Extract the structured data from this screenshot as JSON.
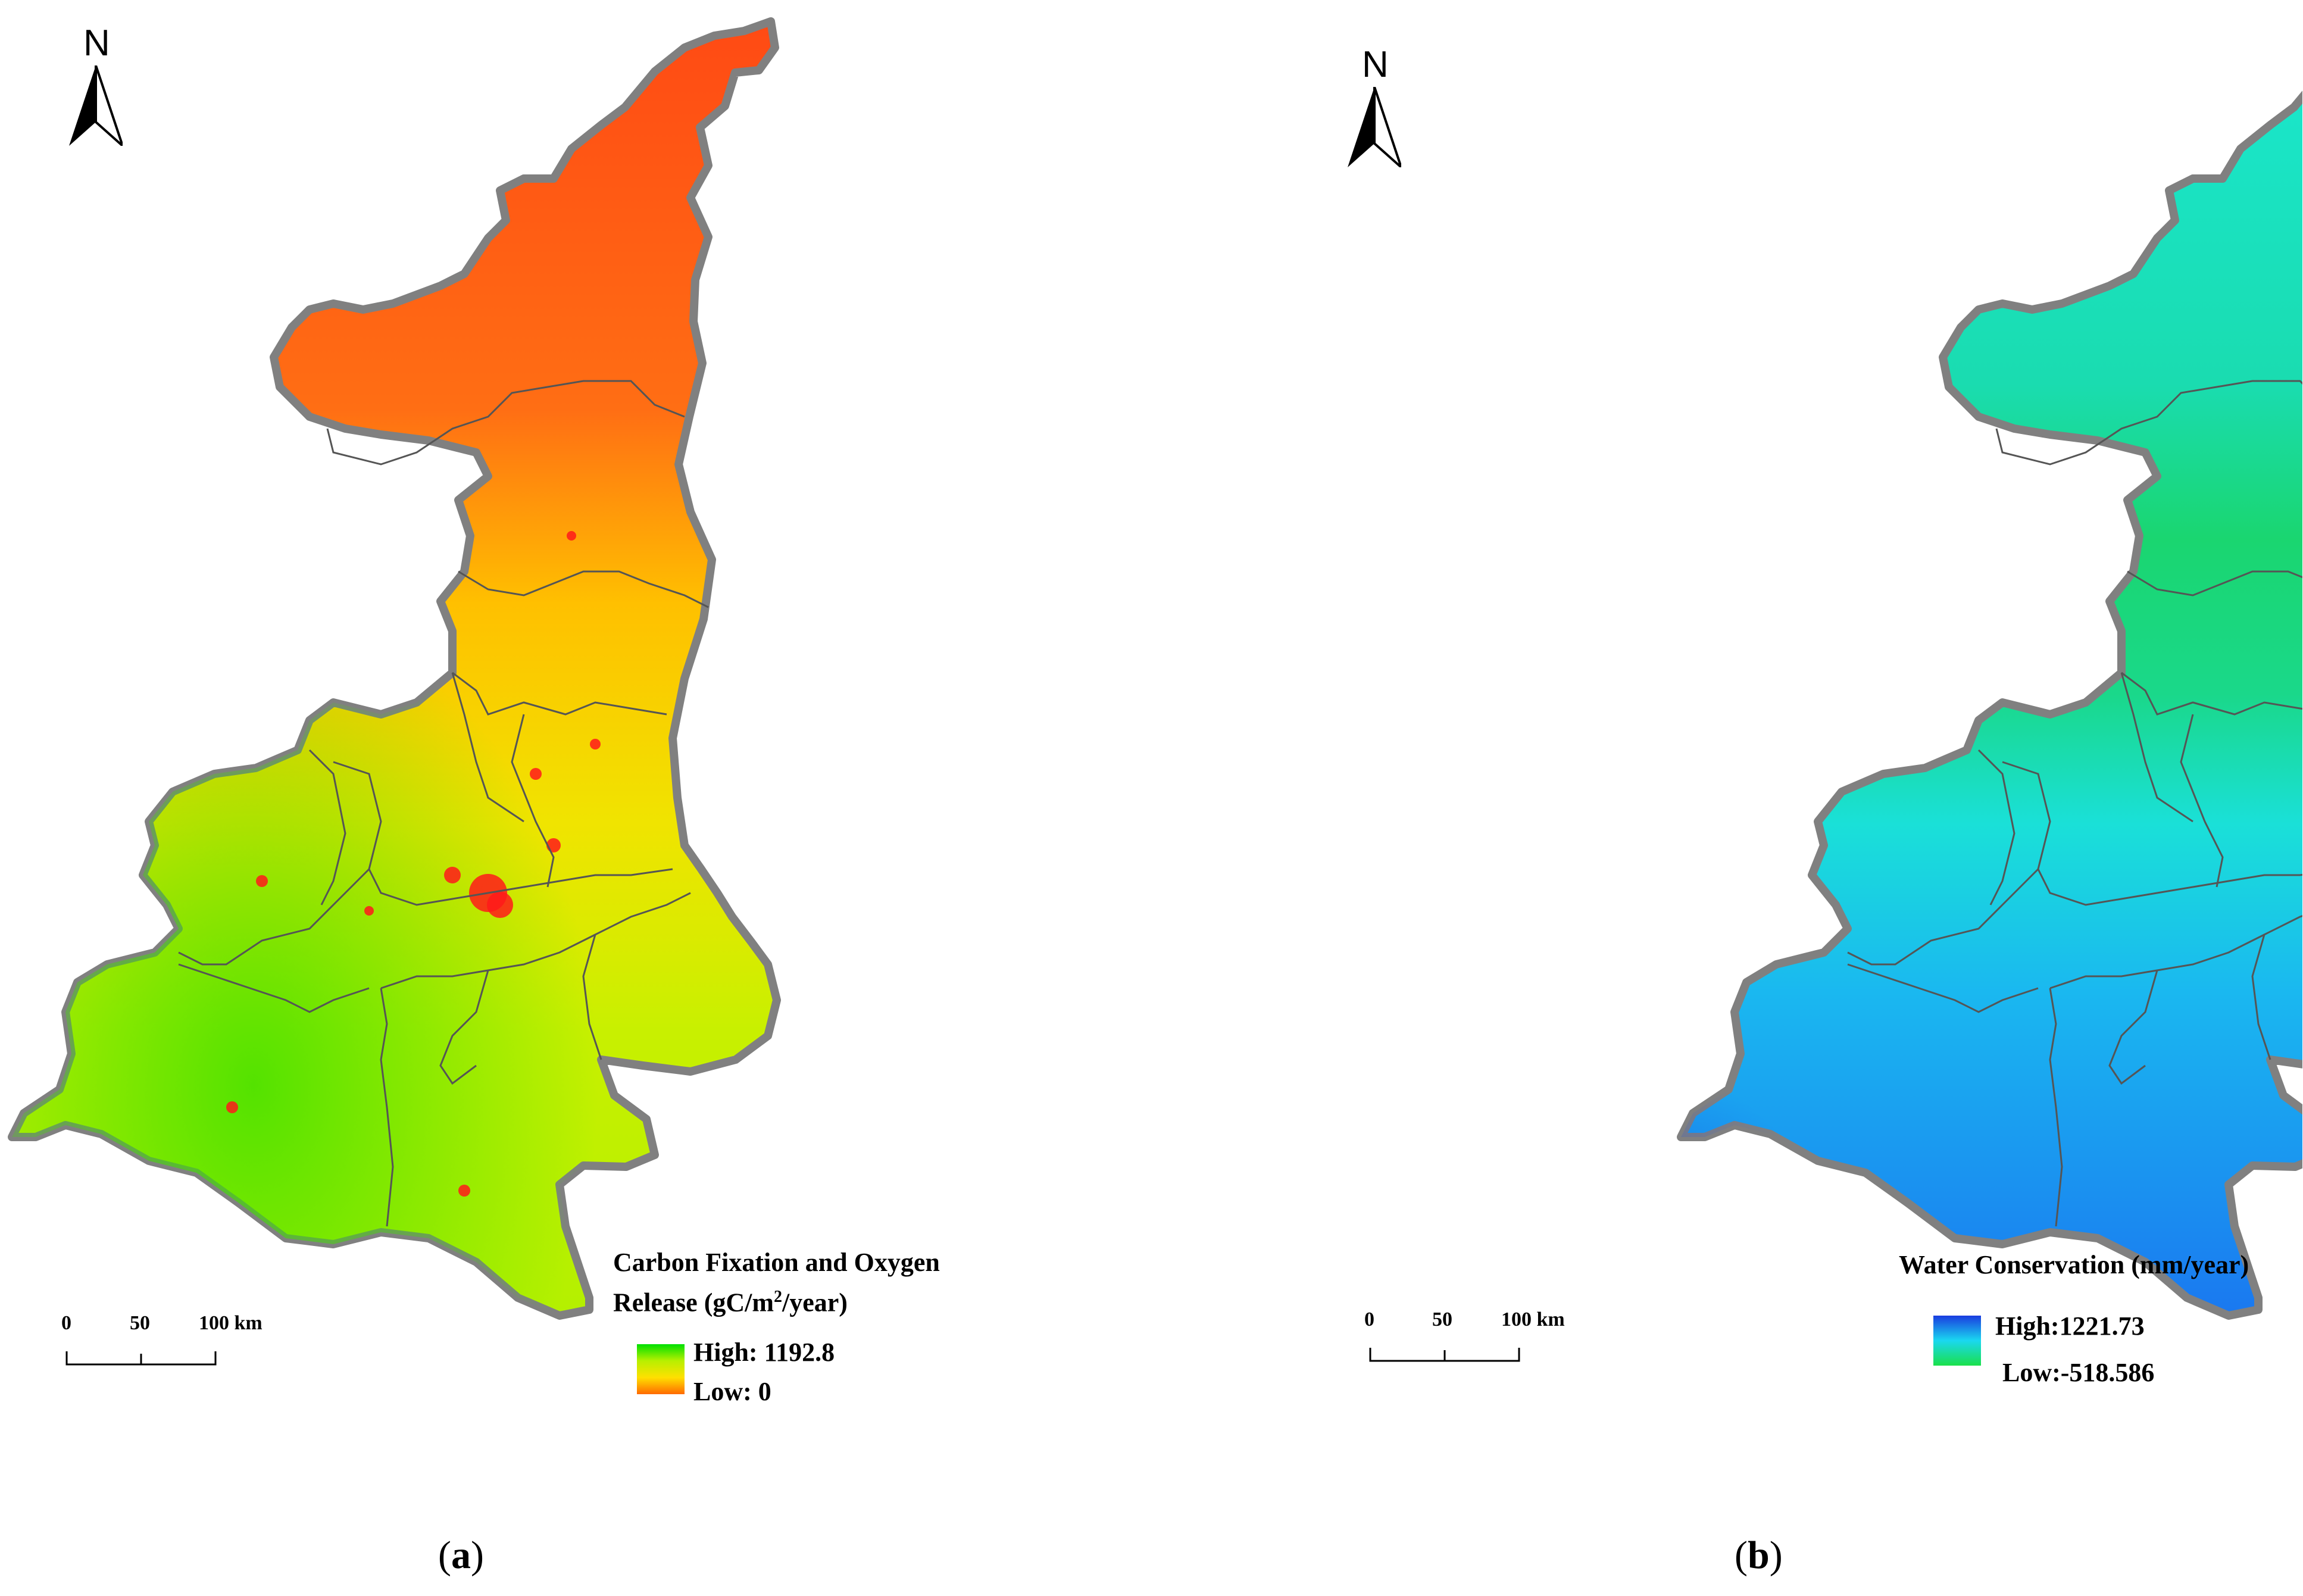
{
  "panels": [
    {
      "id": "a",
      "caption_open": "(",
      "caption_letter": "a",
      "caption_close": ")",
      "north_label": "N",
      "legend": {
        "title_line1": "Carbon Fixation and Oxygen",
        "title_line2_pre": "Release (gC/m",
        "title_line2_sup": "2",
        "title_line2_post": "/year)",
        "high_label": "High: 1192.8",
        "low_label": "Low: 0",
        "gradient_colors": [
          "#00e000",
          "#b8f000",
          "#ffe000",
          "#ff6a00"
        ]
      },
      "scalebar": {
        "labels": [
          "0",
          "50",
          "100 km"
        ]
      },
      "map_colors": {
        "north": "#ff5a14",
        "middle": "#ffb400",
        "south": "#c8f000",
        "southwest": "#5ee000",
        "outline": "#808080",
        "hotspots": "#ff1a1a"
      }
    },
    {
      "id": "b",
      "caption_open": "(",
      "caption_letter": "b",
      "caption_close": ")",
      "north_label": "N",
      "legend": {
        "title": "Water Conservation (mm/year)",
        "high_label": "High:1221.73",
        "low_label": "Low:-518.586",
        "gradient_colors": [
          "#1a3ce0",
          "#1ad8f0",
          "#1ae04a"
        ]
      },
      "scalebar": {
        "labels": [
          "0",
          "50",
          "100 km"
        ]
      },
      "map_colors": {
        "north": "#19e8c8",
        "middle": "#1ad680",
        "south": "#1a4ae6",
        "outline": "#808080"
      }
    }
  ]
}
